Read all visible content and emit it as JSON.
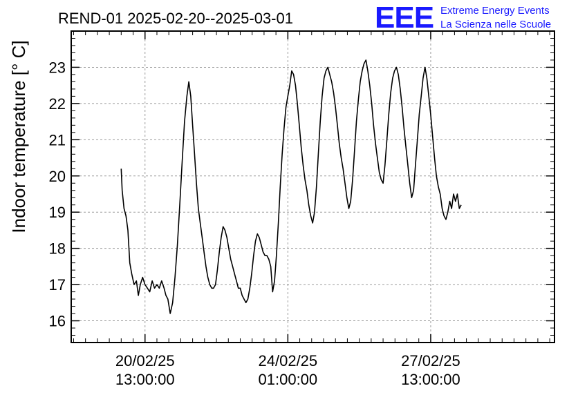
{
  "chart_data": {
    "type": "line",
    "title": "REND-01 2025-02-20--2025-03-01",
    "ylabel": "Indoor temperature [° C]",
    "xlabel": "",
    "ylim": [
      15.4,
      24.0
    ],
    "xlim": [
      -1.55,
      8.6
    ],
    "y_ticks": [
      16,
      17,
      18,
      19,
      20,
      21,
      22,
      23
    ],
    "x_ticks": [
      {
        "value": 0.0,
        "line1": "20/02/25",
        "line2": "13:00:00"
      },
      {
        "value": 3.0,
        "line1": "24/02/25",
        "line2": "01:00:00"
      },
      {
        "value": 6.0,
        "line1": "27/02/25",
        "line2": "13:00:00"
      }
    ],
    "x_unit": "3.5 days between labeled ticks",
    "grid": true,
    "line_color": "#000000",
    "series": [
      {
        "values": [
          [
            -0.5,
            20.2
          ],
          [
            -0.48,
            19.6
          ],
          [
            -0.44,
            19.1
          ],
          [
            -0.4,
            18.9
          ],
          [
            -0.36,
            18.5
          ],
          [
            -0.32,
            17.6
          ],
          [
            -0.28,
            17.3
          ],
          [
            -0.23,
            17.0
          ],
          [
            -0.18,
            17.1
          ],
          [
            -0.14,
            16.7
          ],
          [
            -0.1,
            17.0
          ],
          [
            -0.05,
            17.2
          ],
          [
            0.0,
            17.0
          ],
          [
            0.05,
            16.9
          ],
          [
            0.1,
            16.8
          ],
          [
            0.15,
            17.1
          ],
          [
            0.2,
            16.9
          ],
          [
            0.25,
            17.0
          ],
          [
            0.3,
            16.9
          ],
          [
            0.35,
            17.1
          ],
          [
            0.4,
            16.9
          ],
          [
            0.44,
            16.7
          ],
          [
            0.48,
            16.6
          ],
          [
            0.53,
            16.2
          ],
          [
            0.58,
            16.5
          ],
          [
            0.63,
            17.2
          ],
          [
            0.68,
            18.1
          ],
          [
            0.73,
            19.2
          ],
          [
            0.78,
            20.4
          ],
          [
            0.83,
            21.5
          ],
          [
            0.88,
            22.2
          ],
          [
            0.92,
            22.6
          ],
          [
            0.96,
            22.2
          ],
          [
            1.0,
            21.4
          ],
          [
            1.04,
            20.6
          ],
          [
            1.08,
            19.8
          ],
          [
            1.12,
            19.1
          ],
          [
            1.16,
            18.7
          ],
          [
            1.2,
            18.3
          ],
          [
            1.24,
            17.9
          ],
          [
            1.28,
            17.5
          ],
          [
            1.32,
            17.2
          ],
          [
            1.36,
            17.0
          ],
          [
            1.4,
            16.9
          ],
          [
            1.44,
            16.9
          ],
          [
            1.48,
            17.0
          ],
          [
            1.52,
            17.4
          ],
          [
            1.56,
            17.9
          ],
          [
            1.6,
            18.3
          ],
          [
            1.64,
            18.6
          ],
          [
            1.68,
            18.5
          ],
          [
            1.72,
            18.3
          ],
          [
            1.76,
            18.0
          ],
          [
            1.8,
            17.7
          ],
          [
            1.84,
            17.5
          ],
          [
            1.88,
            17.3
          ],
          [
            1.92,
            17.1
          ],
          [
            1.96,
            16.9
          ],
          [
            2.0,
            16.9
          ],
          [
            2.04,
            16.7
          ],
          [
            2.08,
            16.6
          ],
          [
            2.12,
            16.5
          ],
          [
            2.16,
            16.6
          ],
          [
            2.2,
            16.9
          ],
          [
            2.24,
            17.3
          ],
          [
            2.28,
            17.8
          ],
          [
            2.32,
            18.2
          ],
          [
            2.36,
            18.4
          ],
          [
            2.4,
            18.3
          ],
          [
            2.44,
            18.1
          ],
          [
            2.48,
            17.9
          ],
          [
            2.52,
            17.8
          ],
          [
            2.56,
            17.8
          ],
          [
            2.6,
            17.7
          ],
          [
            2.64,
            17.5
          ],
          [
            2.68,
            16.8
          ],
          [
            2.72,
            17.1
          ],
          [
            2.76,
            17.8
          ],
          [
            2.8,
            18.7
          ],
          [
            2.84,
            19.7
          ],
          [
            2.88,
            20.6
          ],
          [
            2.92,
            21.3
          ],
          [
            2.96,
            21.9
          ],
          [
            3.0,
            22.2
          ],
          [
            3.04,
            22.5
          ],
          [
            3.08,
            22.9
          ],
          [
            3.12,
            22.8
          ],
          [
            3.16,
            22.5
          ],
          [
            3.2,
            22.0
          ],
          [
            3.24,
            21.4
          ],
          [
            3.28,
            20.8
          ],
          [
            3.32,
            20.3
          ],
          [
            3.36,
            19.9
          ],
          [
            3.4,
            19.6
          ],
          [
            3.44,
            19.2
          ],
          [
            3.48,
            18.9
          ],
          [
            3.52,
            18.7
          ],
          [
            3.56,
            19.0
          ],
          [
            3.6,
            19.7
          ],
          [
            3.64,
            20.6
          ],
          [
            3.68,
            21.5
          ],
          [
            3.72,
            22.2
          ],
          [
            3.76,
            22.7
          ],
          [
            3.8,
            22.9
          ],
          [
            3.84,
            23.0
          ],
          [
            3.88,
            22.8
          ],
          [
            3.92,
            22.6
          ],
          [
            3.96,
            22.3
          ],
          [
            4.0,
            21.9
          ],
          [
            4.04,
            21.4
          ],
          [
            4.08,
            20.9
          ],
          [
            4.12,
            20.5
          ],
          [
            4.16,
            20.2
          ],
          [
            4.2,
            19.8
          ],
          [
            4.24,
            19.4
          ],
          [
            4.28,
            19.1
          ],
          [
            4.32,
            19.3
          ],
          [
            4.36,
            19.9
          ],
          [
            4.4,
            20.7
          ],
          [
            4.44,
            21.5
          ],
          [
            4.48,
            22.1
          ],
          [
            4.52,
            22.6
          ],
          [
            4.56,
            22.9
          ],
          [
            4.6,
            23.1
          ],
          [
            4.64,
            23.2
          ],
          [
            4.68,
            22.9
          ],
          [
            4.72,
            22.5
          ],
          [
            4.76,
            22.0
          ],
          [
            4.8,
            21.4
          ],
          [
            4.84,
            20.9
          ],
          [
            4.88,
            20.5
          ],
          [
            4.92,
            20.1
          ],
          [
            4.96,
            19.9
          ],
          [
            5.0,
            19.8
          ],
          [
            5.04,
            20.3
          ],
          [
            5.08,
            21.0
          ],
          [
            5.12,
            21.7
          ],
          [
            5.16,
            22.3
          ],
          [
            5.2,
            22.7
          ],
          [
            5.24,
            22.9
          ],
          [
            5.28,
            23.0
          ],
          [
            5.32,
            22.8
          ],
          [
            5.36,
            22.4
          ],
          [
            5.4,
            21.9
          ],
          [
            5.44,
            21.3
          ],
          [
            5.48,
            20.8
          ],
          [
            5.52,
            20.3
          ],
          [
            5.56,
            19.8
          ],
          [
            5.6,
            19.4
          ],
          [
            5.64,
            19.6
          ],
          [
            5.68,
            20.3
          ],
          [
            5.72,
            21.0
          ],
          [
            5.76,
            21.7
          ],
          [
            5.8,
            22.2
          ],
          [
            5.84,
            22.7
          ],
          [
            5.88,
            23.0
          ],
          [
            5.92,
            22.7
          ],
          [
            5.96,
            22.2
          ],
          [
            6.0,
            21.7
          ],
          [
            6.04,
            21.1
          ],
          [
            6.08,
            20.5
          ],
          [
            6.12,
            20.0
          ],
          [
            6.16,
            19.7
          ],
          [
            6.2,
            19.5
          ],
          [
            6.24,
            19.1
          ],
          [
            6.28,
            18.9
          ],
          [
            6.32,
            18.8
          ],
          [
            6.36,
            19.0
          ],
          [
            6.4,
            19.3
          ],
          [
            6.44,
            19.1
          ],
          [
            6.48,
            19.5
          ],
          [
            6.52,
            19.3
          ],
          [
            6.56,
            19.5
          ],
          [
            6.6,
            19.1
          ],
          [
            6.64,
            19.2
          ]
        ]
      }
    ]
  },
  "logo": {
    "mark": "EEE",
    "line1": "Extreme Energy Events",
    "line2": "La Scienza nelle Scuole",
    "color": "#1a1aff"
  }
}
